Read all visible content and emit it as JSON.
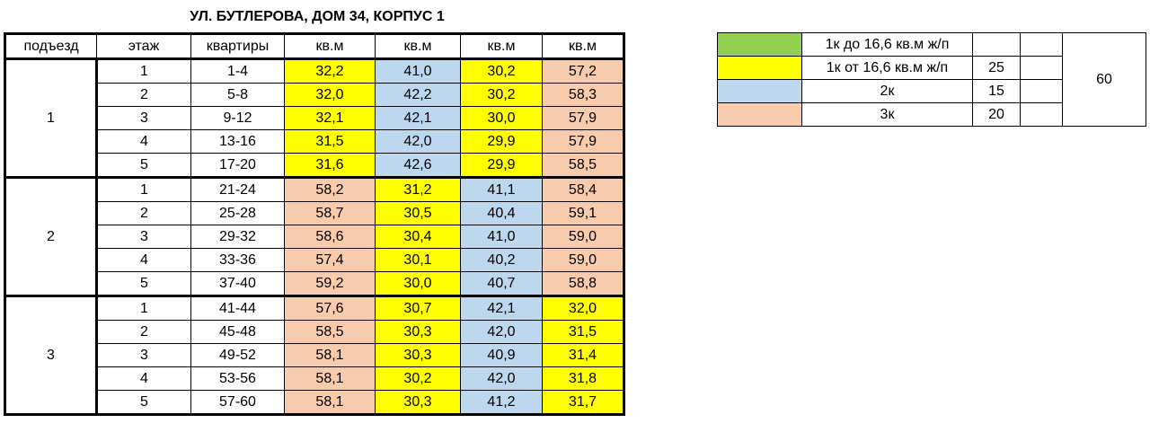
{
  "title": "УЛ. БУТЛЕРОВА, ДОМ 34, КОРПУС 1",
  "colors": {
    "yellow": "#ffff00",
    "blue": "#bdd7ee",
    "salmon": "#f8cbad",
    "green": "#92d050"
  },
  "headers": [
    "подъезд",
    "этаж",
    "квартиры",
    "кв.м",
    "кв.м",
    "кв.м",
    "кв.м"
  ],
  "entrances": [
    {
      "label": "1",
      "floors": [
        {
          "floor": "1",
          "apts": "1-4",
          "areas": [
            "32,2",
            "41,0",
            "30,2",
            "57,2"
          ],
          "colors": [
            "yellow",
            "blue",
            "yellow",
            "salmon"
          ]
        },
        {
          "floor": "2",
          "apts": "5-8",
          "areas": [
            "32,0",
            "42,2",
            "30,2",
            "58,3"
          ],
          "colors": [
            "yellow",
            "blue",
            "yellow",
            "salmon"
          ]
        },
        {
          "floor": "3",
          "apts": "9-12",
          "areas": [
            "32,1",
            "42,1",
            "30,0",
            "57,9"
          ],
          "colors": [
            "yellow",
            "blue",
            "yellow",
            "salmon"
          ]
        },
        {
          "floor": "4",
          "apts": "13-16",
          "areas": [
            "31,5",
            "42,0",
            "29,9",
            "57,9"
          ],
          "colors": [
            "yellow",
            "blue",
            "yellow",
            "salmon"
          ]
        },
        {
          "floor": "5",
          "apts": "17-20",
          "areas": [
            "31,6",
            "42,6",
            "29,9",
            "58,5"
          ],
          "colors": [
            "yellow",
            "blue",
            "yellow",
            "salmon"
          ]
        }
      ]
    },
    {
      "label": "2",
      "floors": [
        {
          "floor": "1",
          "apts": "21-24",
          "areas": [
            "58,2",
            "31,2",
            "41,1",
            "58,4"
          ],
          "colors": [
            "salmon",
            "yellow",
            "blue",
            "salmon"
          ]
        },
        {
          "floor": "2",
          "apts": "25-28",
          "areas": [
            "58,7",
            "30,5",
            "40,4",
            "59,1"
          ],
          "colors": [
            "salmon",
            "yellow",
            "blue",
            "salmon"
          ]
        },
        {
          "floor": "3",
          "apts": "29-32",
          "areas": [
            "58,6",
            "30,4",
            "41,0",
            "59,0"
          ],
          "colors": [
            "salmon",
            "yellow",
            "blue",
            "salmon"
          ]
        },
        {
          "floor": "4",
          "apts": "33-36",
          "areas": [
            "57,4",
            "30,1",
            "40,2",
            "59,0"
          ],
          "colors": [
            "salmon",
            "yellow",
            "blue",
            "salmon"
          ]
        },
        {
          "floor": "5",
          "apts": "37-40",
          "areas": [
            "59,2",
            "30,0",
            "40,7",
            "58,8"
          ],
          "colors": [
            "salmon",
            "yellow",
            "blue",
            "salmon"
          ]
        }
      ]
    },
    {
      "label": "3",
      "floors": [
        {
          "floor": "1",
          "apts": "41-44",
          "areas": [
            "57,6",
            "30,7",
            "42,1",
            "32,0"
          ],
          "colors": [
            "salmon",
            "yellow",
            "blue",
            "yellow"
          ]
        },
        {
          "floor": "2",
          "apts": "45-48",
          "areas": [
            "58,5",
            "30,3",
            "42,0",
            "31,5"
          ],
          "colors": [
            "salmon",
            "yellow",
            "blue",
            "yellow"
          ]
        },
        {
          "floor": "3",
          "apts": "49-52",
          "areas": [
            "58,1",
            "30,3",
            "40,9",
            "31,4"
          ],
          "colors": [
            "salmon",
            "yellow",
            "blue",
            "yellow"
          ]
        },
        {
          "floor": "4",
          "apts": "53-56",
          "areas": [
            "58,1",
            "30,2",
            "42,0",
            "31,8"
          ],
          "colors": [
            "salmon",
            "yellow",
            "blue",
            "yellow"
          ]
        },
        {
          "floor": "5",
          "apts": "57-60",
          "areas": [
            "58,1",
            "30,3",
            "41,2",
            "31,7"
          ],
          "colors": [
            "salmon",
            "yellow",
            "blue",
            "yellow"
          ]
        }
      ]
    }
  ],
  "legend": {
    "rows": [
      {
        "color": "green",
        "label": "1к до 16,6 кв.м ж/п",
        "count": ""
      },
      {
        "color": "yellow",
        "label": "1к от 16,6 кв.м ж/п",
        "count": "25"
      },
      {
        "color": "blue",
        "label": "2к",
        "count": "15"
      },
      {
        "color": "salmon",
        "label": "3к",
        "count": "20"
      }
    ],
    "total": "60"
  }
}
